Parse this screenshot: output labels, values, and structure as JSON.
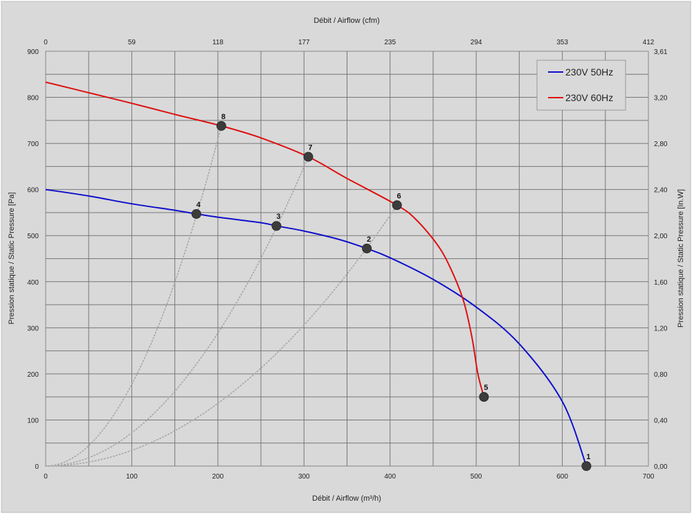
{
  "chart_data": {
    "type": "line",
    "xlabel_bottom": "Débit / Airflow (m³/h)",
    "xlabel_top": "Débit / Airflow (cfm)",
    "ylabel_left": "Pression statique / Static Pressure [Pa]",
    "ylabel_right": "Pression statique / Static Pressure [In.W]",
    "xlim": [
      0,
      700
    ],
    "ylim": [
      0,
      900
    ],
    "x_ticks": [
      "0",
      "100",
      "200",
      "300",
      "400",
      "500",
      "600",
      "700"
    ],
    "y_ticks": [
      "0",
      "100",
      "200",
      "300",
      "400",
      "500",
      "600",
      "700",
      "800",
      "900"
    ],
    "top_ticks": [
      "0",
      "59",
      "118",
      "177",
      "235",
      "294",
      "353",
      "412"
    ],
    "right_ticks": [
      "0,00",
      "0,40",
      "0,80",
      "1,20",
      "1,60",
      "2,00",
      "2,40",
      "2,80",
      "3,20",
      "3,61"
    ],
    "grid": true,
    "legend_position": "top-right",
    "series": [
      {
        "name": "230V 50Hz",
        "color": "#1010cc",
        "points": [
          [
            0,
            600
          ],
          [
            50,
            586
          ],
          [
            100,
            569
          ],
          [
            150,
            555
          ],
          [
            175,
            547
          ],
          [
            200,
            540
          ],
          [
            250,
            528
          ],
          [
            268,
            521
          ],
          [
            300,
            510
          ],
          [
            340,
            492
          ],
          [
            373,
            472
          ],
          [
            400,
            452
          ],
          [
            450,
            405
          ],
          [
            500,
            345
          ],
          [
            550,
            265
          ],
          [
            600,
            140
          ],
          [
            628,
            0
          ]
        ]
      },
      {
        "name": "230V 60Hz",
        "color": "#dd1111",
        "points": [
          [
            0,
            833
          ],
          [
            50,
            810
          ],
          [
            100,
            787
          ],
          [
            150,
            763
          ],
          [
            204,
            738
          ],
          [
            250,
            712
          ],
          [
            305,
            671
          ],
          [
            350,
            624
          ],
          [
            408,
            566
          ],
          [
            430,
            535
          ],
          [
            455,
            480
          ],
          [
            470,
            430
          ],
          [
            485,
            360
          ],
          [
            495,
            280
          ],
          [
            502,
            200
          ],
          [
            509,
            150
          ]
        ]
      }
    ],
    "operating_points": [
      {
        "label": "1",
        "x": 628,
        "y": 0
      },
      {
        "label": "2",
        "x": 373,
        "y": 472
      },
      {
        "label": "3",
        "x": 268,
        "y": 521
      },
      {
        "label": "4",
        "x": 175,
        "y": 547
      },
      {
        "label": "5",
        "x": 509,
        "y": 150
      },
      {
        "label": "6",
        "x": 408,
        "y": 566
      },
      {
        "label": "7",
        "x": 305,
        "y": 671
      },
      {
        "label": "8",
        "x": 204,
        "y": 738
      }
    ],
    "system_curves": [
      {
        "through": [
          204,
          738
        ]
      },
      {
        "through": [
          305,
          671
        ]
      },
      {
        "through": [
          408,
          566
        ]
      }
    ]
  }
}
